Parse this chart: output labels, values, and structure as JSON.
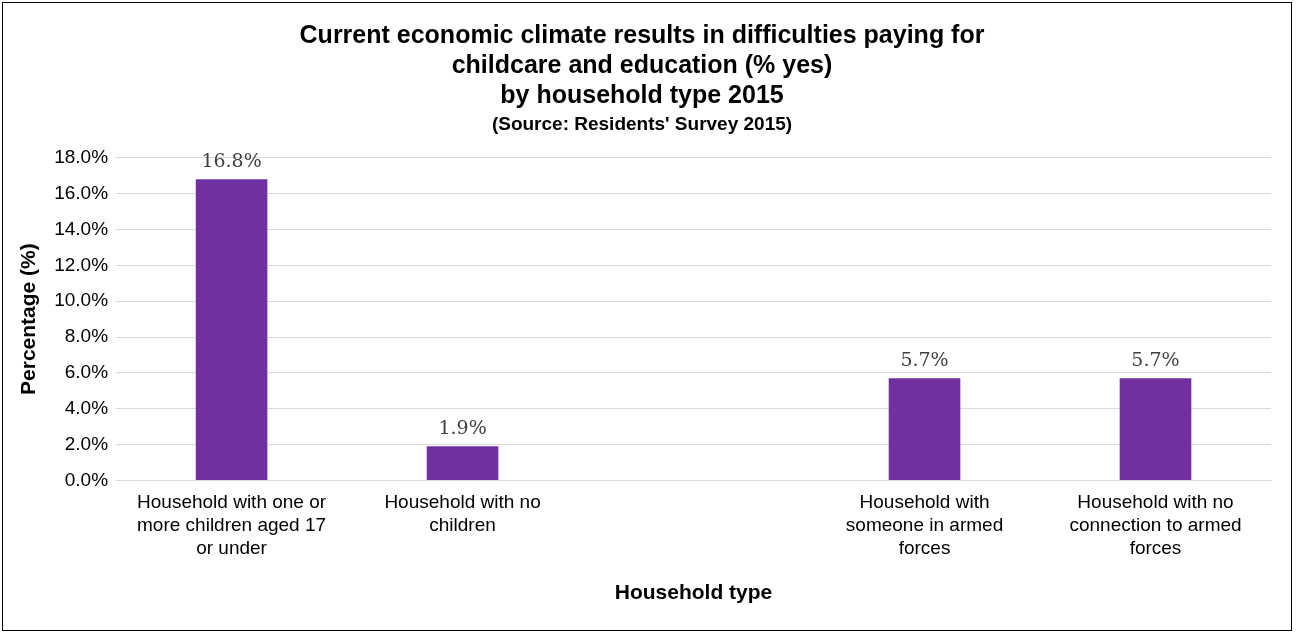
{
  "chart_data": {
    "type": "bar",
    "title": "Current economic climate results in difficulties paying for\nchildcare and education (% yes)\nby household type 2015",
    "subtitle": "(Source: Residents' Survey 2015)",
    "xlabel": "Household type",
    "ylabel": "Percentage (%)",
    "categories": [
      "Household with one or more children aged 17 or under",
      "Household with no children",
      null,
      "Household with someone in armed forces",
      "Household with no connection to armed forces"
    ],
    "values": [
      16.8,
      1.9,
      null,
      5.7,
      5.7
    ],
    "color": "#7030a0",
    "ylim": [
      0,
      18
    ],
    "yticks": [
      {
        "value": 0,
        "label": "0.0%"
      },
      {
        "value": 2,
        "label": "2.0%"
      },
      {
        "value": 4,
        "label": "4.0%"
      },
      {
        "value": 6,
        "label": "6.0%"
      },
      {
        "value": 8,
        "label": "8.0%"
      },
      {
        "value": 10,
        "label": "10.0%"
      },
      {
        "value": 12,
        "label": "12.0%"
      },
      {
        "value": 14,
        "label": "14.0%"
      },
      {
        "value": 16,
        "label": "16.0%"
      },
      {
        "value": 18,
        "label": "18.0%"
      }
    ],
    "grid": "y",
    "value_labels": [
      "16.8%",
      "1.9%",
      null,
      "5.7%",
      "5.7%"
    ]
  }
}
